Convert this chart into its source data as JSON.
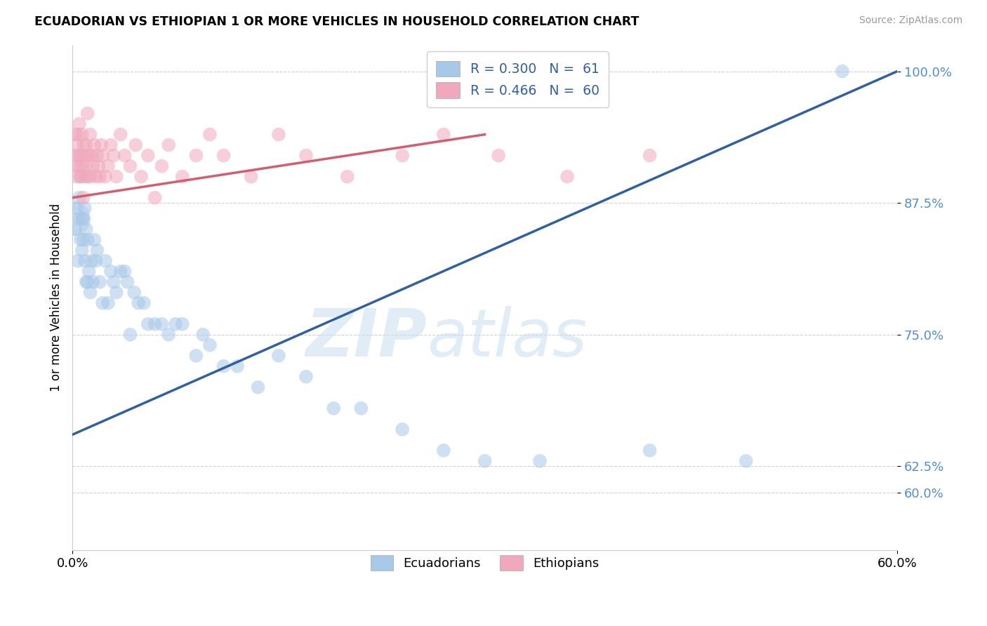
{
  "title": "ECUADORIAN VS ETHIOPIAN 1 OR MORE VEHICLES IN HOUSEHOLD CORRELATION CHART",
  "source": "Source: ZipAtlas.com",
  "ylabel": "1 or more Vehicles in Household",
  "x_min": 0.0,
  "x_max": 0.6,
  "y_min": 0.545,
  "y_max": 1.025,
  "y_ticks": [
    0.6,
    0.625,
    0.75,
    0.875,
    1.0
  ],
  "y_tick_labels": [
    "60.0%",
    "62.5%",
    "75.0%",
    "87.5%",
    "100.0%"
  ],
  "x_ticks": [
    0.0,
    0.6
  ],
  "x_tick_labels": [
    "0.0%",
    "60.0%"
  ],
  "blue_color": "#a8c8e8",
  "pink_color": "#f0a8bc",
  "blue_line_color": "#3060a0",
  "pink_line_color": "#d06070",
  "background_color": "#ffffff",
  "watermark_zip": "ZIP",
  "watermark_atlas": "atlas",
  "blue_line_x0": 0.0,
  "blue_line_y0": 0.655,
  "blue_line_x1": 0.6,
  "blue_line_y1": 1.0,
  "pink_line_x0": 0.0,
  "pink_line_y0": 0.88,
  "pink_line_x1": 0.3,
  "pink_line_y1": 0.94,
  "ecuadorian_x": [
    0.002,
    0.003,
    0.004,
    0.005,
    0.005,
    0.006,
    0.006,
    0.007,
    0.007,
    0.008,
    0.008,
    0.009,
    0.009,
    0.01,
    0.01,
    0.011,
    0.011,
    0.012,
    0.013,
    0.014,
    0.015,
    0.016,
    0.017,
    0.018,
    0.02,
    0.022,
    0.024,
    0.026,
    0.028,
    0.03,
    0.032,
    0.035,
    0.038,
    0.04,
    0.042,
    0.045,
    0.048,
    0.052,
    0.055,
    0.06,
    0.065,
    0.07,
    0.075,
    0.08,
    0.09,
    0.095,
    0.1,
    0.11,
    0.12,
    0.135,
    0.15,
    0.17,
    0.19,
    0.21,
    0.24,
    0.27,
    0.3,
    0.34,
    0.42,
    0.49,
    0.56
  ],
  "ecuadorian_y": [
    0.85,
    0.87,
    0.82,
    0.88,
    0.86,
    0.9,
    0.84,
    0.86,
    0.83,
    0.86,
    0.84,
    0.82,
    0.87,
    0.8,
    0.85,
    0.8,
    0.84,
    0.81,
    0.79,
    0.82,
    0.8,
    0.84,
    0.82,
    0.83,
    0.8,
    0.78,
    0.82,
    0.78,
    0.81,
    0.8,
    0.79,
    0.81,
    0.81,
    0.8,
    0.75,
    0.79,
    0.78,
    0.78,
    0.76,
    0.76,
    0.76,
    0.75,
    0.76,
    0.76,
    0.73,
    0.75,
    0.74,
    0.72,
    0.72,
    0.7,
    0.73,
    0.71,
    0.68,
    0.68,
    0.66,
    0.64,
    0.63,
    0.63,
    0.64,
    0.63,
    1.0
  ],
  "ethiopian_x": [
    0.001,
    0.002,
    0.002,
    0.003,
    0.003,
    0.004,
    0.004,
    0.005,
    0.005,
    0.006,
    0.006,
    0.007,
    0.007,
    0.008,
    0.008,
    0.009,
    0.009,
    0.01,
    0.01,
    0.011,
    0.011,
    0.012,
    0.013,
    0.013,
    0.014,
    0.015,
    0.016,
    0.017,
    0.018,
    0.019,
    0.02,
    0.021,
    0.022,
    0.024,
    0.026,
    0.028,
    0.03,
    0.032,
    0.035,
    0.038,
    0.042,
    0.046,
    0.05,
    0.055,
    0.06,
    0.065,
    0.07,
    0.08,
    0.09,
    0.1,
    0.11,
    0.13,
    0.15,
    0.17,
    0.2,
    0.24,
    0.27,
    0.31,
    0.36,
    0.42
  ],
  "ethiopian_y": [
    0.92,
    0.94,
    0.91,
    0.93,
    0.9,
    0.94,
    0.92,
    0.91,
    0.95,
    0.92,
    0.9,
    0.94,
    0.91,
    0.93,
    0.88,
    0.92,
    0.9,
    0.93,
    0.91,
    0.9,
    0.96,
    0.92,
    0.9,
    0.94,
    0.92,
    0.91,
    0.93,
    0.9,
    0.92,
    0.91,
    0.9,
    0.93,
    0.92,
    0.9,
    0.91,
    0.93,
    0.92,
    0.9,
    0.94,
    0.92,
    0.91,
    0.93,
    0.9,
    0.92,
    0.88,
    0.91,
    0.93,
    0.9,
    0.92,
    0.94,
    0.92,
    0.9,
    0.94,
    0.92,
    0.9,
    0.92,
    0.94,
    0.92,
    0.9,
    0.92
  ]
}
